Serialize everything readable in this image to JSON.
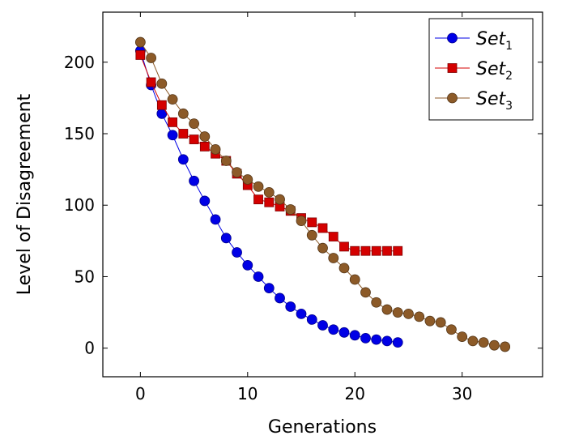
{
  "chart_data": {
    "type": "line",
    "title": "",
    "xlabel": "Generations",
    "ylabel": "Level of Disagreement",
    "xlim": [
      -3.5,
      37.5
    ],
    "ylim": [
      -20,
      235
    ],
    "xticks": [
      0,
      10,
      20,
      30
    ],
    "yticks": [
      0,
      50,
      100,
      150,
      200
    ],
    "xtick_labels": [
      "0",
      "10",
      "20",
      "30"
    ],
    "ytick_labels": [
      "0",
      "50",
      "100",
      "150",
      "200"
    ],
    "grid": false,
    "legend_position": "top-right",
    "series": [
      {
        "name": "Set",
        "subscript": "1",
        "color": "#0000e6",
        "marker": "circle",
        "x": [
          0,
          1,
          2,
          3,
          4,
          5,
          6,
          7,
          8,
          9,
          10,
          11,
          12,
          13,
          14,
          15,
          16,
          17,
          18,
          19,
          20,
          21,
          22,
          23,
          24
        ],
        "y": [
          208,
          184,
          164,
          149,
          132,
          117,
          103,
          90,
          77,
          67,
          58,
          50,
          42,
          35,
          29,
          24,
          20,
          16,
          13,
          11,
          9,
          7,
          6,
          5,
          4
        ]
      },
      {
        "name": "Set",
        "subscript": "2",
        "color": "#d40000",
        "marker": "square",
        "x": [
          0,
          1,
          2,
          3,
          4,
          5,
          6,
          7,
          8,
          9,
          10,
          11,
          12,
          13,
          14,
          15,
          16,
          17,
          18,
          19,
          20,
          21,
          22,
          23,
          24
        ],
        "y": [
          205,
          186,
          170,
          158,
          150,
          146,
          141,
          136,
          131,
          122,
          114,
          104,
          102,
          99,
          96,
          91,
          88,
          84,
          78,
          71,
          68,
          68,
          68,
          68,
          68
        ]
      },
      {
        "name": "Set",
        "subscript": "3",
        "color": "#8c5a28",
        "marker": "circle",
        "x": [
          0,
          1,
          2,
          3,
          4,
          5,
          6,
          7,
          8,
          9,
          10,
          11,
          12,
          13,
          14,
          15,
          16,
          17,
          18,
          19,
          20,
          21,
          22,
          23,
          24,
          25,
          26,
          27,
          28,
          29,
          30,
          31,
          32,
          33,
          34
        ],
        "y": [
          214,
          203,
          185,
          174,
          164,
          157,
          148,
          139,
          131,
          123,
          118,
          113,
          109,
          104,
          97,
          89,
          79,
          70,
          63,
          56,
          48,
          39,
          32,
          27,
          25,
          24,
          22,
          19,
          18,
          13,
          8,
          5,
          4,
          2,
          1
        ]
      }
    ]
  }
}
